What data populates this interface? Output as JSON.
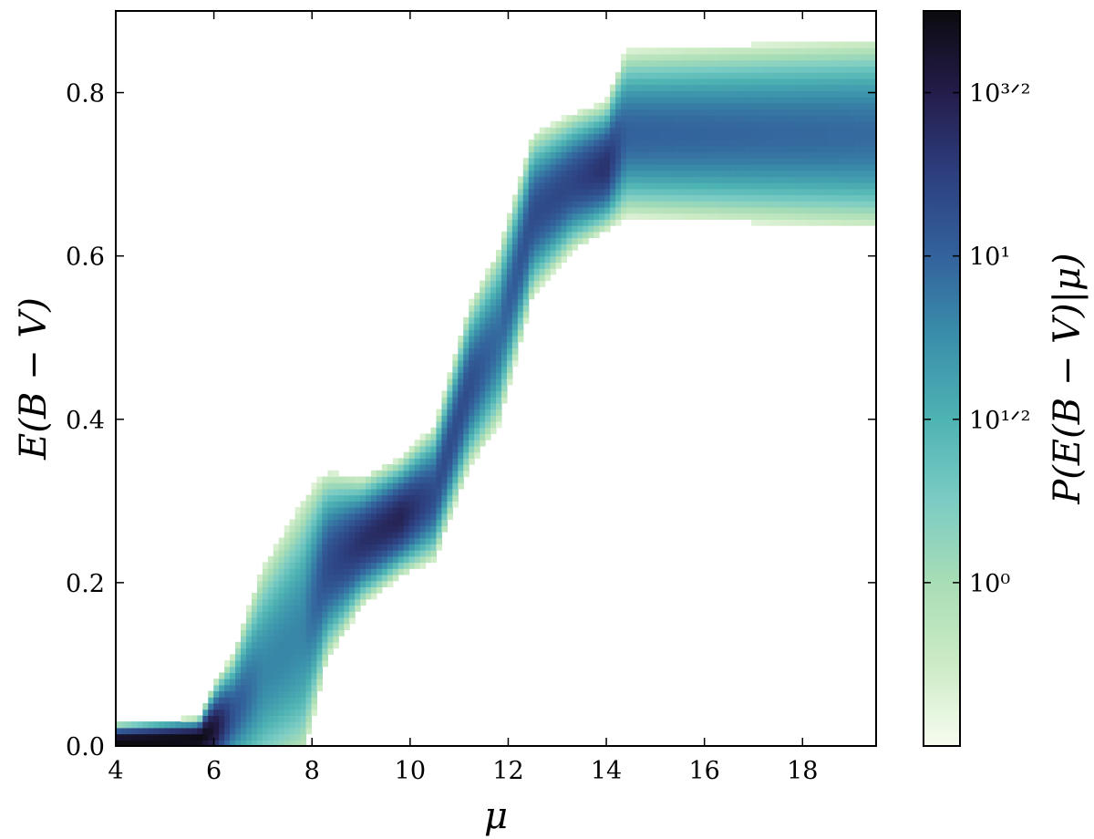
{
  "chart_data": {
    "type": "heatmap",
    "title": "",
    "xlabel": "μ",
    "ylabel": "E(B − V)",
    "xlim": [
      4,
      19.5
    ],
    "ylim": [
      0,
      0.9
    ],
    "x_ticks": [
      4,
      6,
      8,
      10,
      12,
      14,
      16,
      18
    ],
    "x_tick_labels": [
      "4",
      "6",
      "8",
      "10",
      "12",
      "14",
      "16",
      "18"
    ],
    "y_ticks": [
      0.0,
      0.2,
      0.4,
      0.6,
      0.8
    ],
    "y_tick_labels": [
      "0.0",
      "0.2",
      "0.4",
      "0.6",
      "0.8"
    ],
    "grid": false,
    "colorbar": {
      "label": "P(E(B − V)|μ)",
      "scale": "log",
      "range_log10": [
        -0.5,
        1.75
      ],
      "ticks_log10": [
        0,
        0.5,
        1,
        1.5
      ],
      "tick_labels": [
        "10⁰",
        "10¹ᐟ²",
        "10¹",
        "10³ᐟ²"
      ],
      "colors": [
        "#f7fcf0",
        "#ccebc5",
        "#a8ddb5",
        "#7bccc4",
        "#4eb3b3",
        "#3a8fab",
        "#33629c",
        "#2d3f7f",
        "#241c4a",
        "#0b0b0f"
      ]
    },
    "ridge": [
      {
        "x": 4.0,
        "center": 0.005,
        "width": 0.012,
        "log_peak": 1.75
      },
      {
        "x": 5.7,
        "center": 0.008,
        "width": 0.014,
        "log_peak": 1.75
      },
      {
        "x": 6.0,
        "center": 0.02,
        "width": 0.03,
        "log_peak": 1.6
      },
      {
        "x": 6.4,
        "center": 0.04,
        "width": 0.045,
        "log_peak": 1.1
      },
      {
        "x": 7.0,
        "center": 0.09,
        "width": 0.09,
        "log_peak": 0.8
      },
      {
        "x": 7.8,
        "center": 0.14,
        "width": 0.11,
        "log_peak": 0.8
      },
      {
        "x": 8.3,
        "center": 0.22,
        "width": 0.07,
        "log_peak": 1.15
      },
      {
        "x": 9.0,
        "center": 0.25,
        "width": 0.045,
        "log_peak": 1.35
      },
      {
        "x": 9.8,
        "center": 0.28,
        "width": 0.04,
        "log_peak": 1.45
      },
      {
        "x": 10.5,
        "center": 0.31,
        "width": 0.05,
        "log_peak": 1.15
      },
      {
        "x": 11.2,
        "center": 0.44,
        "width": 0.06,
        "log_peak": 1.15
      },
      {
        "x": 11.8,
        "center": 0.5,
        "width": 0.07,
        "log_peak": 0.95
      },
      {
        "x": 12.5,
        "center": 0.65,
        "width": 0.06,
        "log_peak": 1.15
      },
      {
        "x": 13.3,
        "center": 0.69,
        "width": 0.05,
        "log_peak": 1.2
      },
      {
        "x": 14.0,
        "center": 0.71,
        "width": 0.045,
        "log_peak": 1.35
      },
      {
        "x": 14.4,
        "center": 0.75,
        "width": 0.065,
        "log_peak": 1.0
      },
      {
        "x": 19.5,
        "center": 0.75,
        "width": 0.075,
        "log_peak": 0.95
      }
    ]
  }
}
